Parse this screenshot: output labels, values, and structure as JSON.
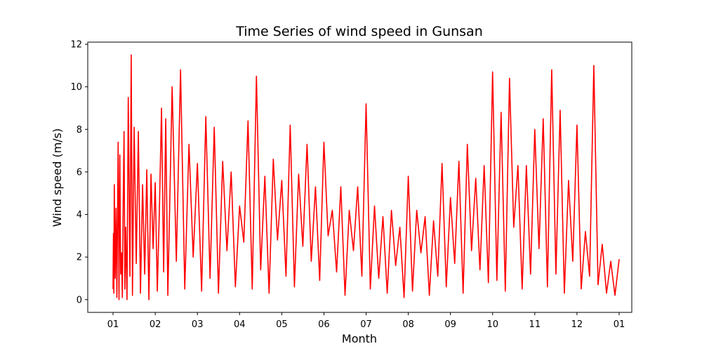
{
  "chart_data": {
    "type": "line",
    "title": "Time Series of wind speed in Gunsan",
    "xlabel": "Month",
    "ylabel": "Wind speed (m/s)",
    "x_tick_labels": [
      "01",
      "02",
      "03",
      "04",
      "05",
      "06",
      "07",
      "08",
      "09",
      "10",
      "11",
      "12",
      "01"
    ],
    "x_tick_months": [
      0,
      1,
      2,
      3,
      4,
      5,
      6,
      7,
      8,
      9,
      10,
      11,
      12
    ],
    "y_ticks": [
      0,
      2,
      4,
      6,
      8,
      10,
      12
    ],
    "xlim_months": [
      -0.6,
      12.3
    ],
    "ylim": [
      -0.6,
      12.1
    ],
    "grid": false,
    "legend": "none",
    "series": [
      {
        "color": "#ff0000",
        "x_months": [
          0.0,
          0.01,
          0.02,
          0.03,
          0.05,
          0.07,
          0.09,
          0.1,
          0.12,
          0.14,
          0.16,
          0.18,
          0.2,
          0.22,
          0.24,
          0.26,
          0.28,
          0.3,
          0.33,
          0.36,
          0.4,
          0.43,
          0.46,
          0.5,
          0.55,
          0.6,
          0.65,
          0.7,
          0.75,
          0.8,
          0.85,
          0.9,
          0.95,
          1.0,
          1.05,
          1.1,
          1.15,
          1.2,
          1.25,
          1.3,
          1.4,
          1.5,
          1.6,
          1.7,
          1.8,
          1.9,
          2.0,
          2.1,
          2.2,
          2.3,
          2.4,
          2.5,
          2.6,
          2.7,
          2.8,
          2.9,
          3.0,
          3.1,
          3.2,
          3.3,
          3.4,
          3.5,
          3.6,
          3.7,
          3.8,
          3.9,
          4.0,
          4.1,
          4.2,
          4.3,
          4.4,
          4.5,
          4.6,
          4.7,
          4.8,
          4.9,
          5.0,
          5.1,
          5.2,
          5.3,
          5.4,
          5.5,
          5.6,
          5.7,
          5.8,
          5.9,
          6.0,
          6.1,
          6.2,
          6.3,
          6.4,
          6.5,
          6.6,
          6.7,
          6.8,
          6.9,
          7.0,
          7.1,
          7.2,
          7.3,
          7.4,
          7.5,
          7.6,
          7.7,
          7.8,
          7.9,
          8.0,
          8.1,
          8.2,
          8.3,
          8.4,
          8.5,
          8.6,
          8.7,
          8.8,
          8.9,
          9.0,
          9.1,
          9.2,
          9.3,
          9.4,
          9.5,
          9.6,
          9.7,
          9.8,
          9.9,
          10.0,
          10.1,
          10.2,
          10.3,
          10.4,
          10.5,
          10.6,
          10.7,
          10.8,
          10.9,
          11.0,
          11.1,
          11.2,
          11.3,
          11.4,
          11.5,
          11.6,
          11.7,
          11.8,
          11.9,
          12.0
        ],
        "values": [
          0.5,
          3.1,
          0.3,
          5.4,
          1.0,
          4.3,
          0.1,
          2.5,
          7.4,
          0.0,
          6.8,
          1.2,
          2.2,
          0.1,
          4.5,
          7.9,
          0.5,
          3.4,
          0.0,
          9.5,
          1.1,
          11.5,
          0.2,
          8.1,
          1.7,
          7.9,
          0.3,
          5.4,
          1.2,
          6.1,
          0.0,
          5.9,
          2.4,
          5.5,
          0.4,
          4.3,
          9.0,
          1.3,
          8.5,
          0.2,
          10.0,
          1.8,
          10.8,
          0.5,
          7.3,
          2.0,
          6.4,
          0.4,
          8.6,
          1.0,
          8.1,
          0.3,
          6.5,
          2.3,
          6.0,
          0.6,
          4.4,
          2.7,
          8.4,
          0.5,
          10.5,
          1.4,
          5.8,
          0.3,
          6.6,
          2.8,
          5.6,
          1.1,
          8.2,
          0.6,
          5.9,
          2.5,
          7.3,
          1.8,
          5.3,
          0.9,
          7.4,
          3.0,
          4.2,
          1.3,
          5.3,
          0.2,
          4.2,
          2.3,
          5.3,
          1.1,
          9.2,
          0.5,
          4.4,
          1.0,
          3.9,
          0.3,
          4.2,
          1.6,
          3.4,
          0.1,
          5.8,
          0.4,
          4.2,
          2.2,
          3.9,
          0.2,
          3.7,
          1.1,
          6.4,
          0.6,
          4.8,
          1.7,
          6.5,
          0.3,
          7.3,
          2.3,
          5.7,
          1.4,
          6.3,
          0.8,
          10.7,
          0.9,
          8.8,
          0.4,
          10.4,
          3.4,
          6.3,
          0.5,
          6.3,
          1.2,
          8.0,
          2.4,
          8.5,
          0.6,
          10.8,
          1.2,
          8.9,
          0.3,
          5.6,
          1.8,
          8.2,
          0.5,
          3.2,
          1.1,
          11.0,
          0.7,
          2.6,
          0.3,
          1.8,
          0.2,
          1.9
        ]
      }
    ]
  }
}
